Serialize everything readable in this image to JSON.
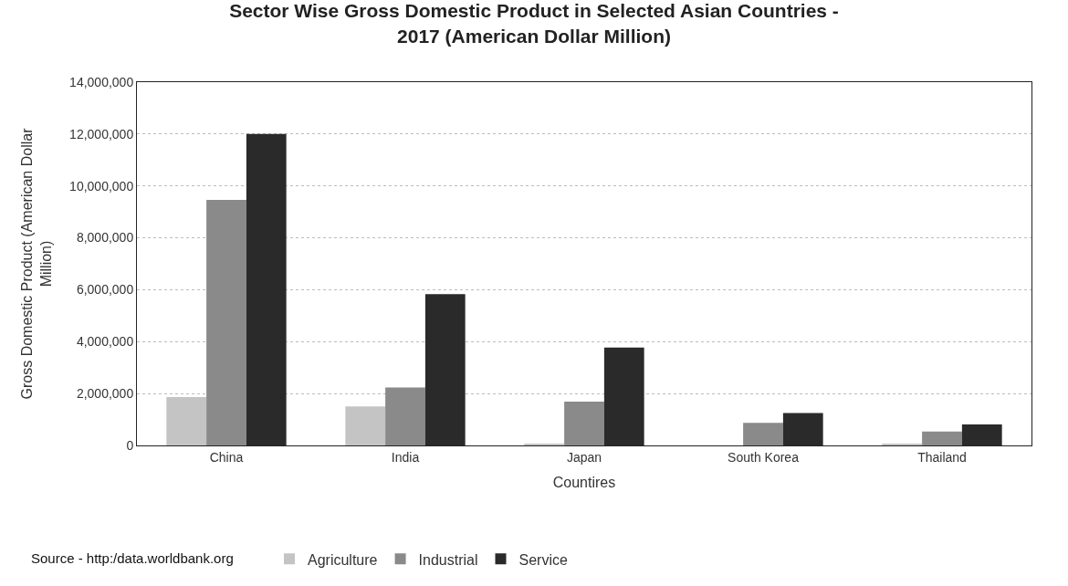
{
  "chart_data": {
    "type": "bar",
    "title": "Sector Wise Gross Domestic Product in Selected Asian Countries -\n2017 (American Dollar Million)",
    "xlabel": "Countires",
    "ylabel": "Gross Domestic Product (American Dollar\nMillion)",
    "categories": [
      "China",
      "India",
      "Japan",
      "South Korea",
      "Thailand"
    ],
    "series": [
      {
        "name": "Agriculture",
        "color": "#c4c4c4",
        "values": [
          1860000,
          1500000,
          60000,
          null,
          50000
        ]
      },
      {
        "name": "Industrial",
        "color": "#8a8a8a",
        "values": [
          9460000,
          2230000,
          1690000,
          870000,
          540000
        ]
      },
      {
        "name": "Service",
        "color": "#2a2a2a",
        "values": [
          12000000,
          5830000,
          3770000,
          1250000,
          810000
        ]
      }
    ],
    "ylim": [
      0,
      14000000
    ],
    "yticks": [
      {
        "value": 0,
        "label": "0"
      },
      {
        "value": 2000000,
        "label": "2,000,000"
      },
      {
        "value": 4000000,
        "label": "4,000,000"
      },
      {
        "value": 6000000,
        "label": "6,000,000"
      },
      {
        "value": 8000000,
        "label": "8,000,000"
      },
      {
        "value": 10000000,
        "label": "10,000,000"
      },
      {
        "value": 12000000,
        "label": "12,000,000"
      },
      {
        "value": 14000000,
        "label": "14,000,000"
      }
    ],
    "grid": "y",
    "legend": "bottom",
    "annotations": [
      "Source - http:/data.worldbank.org"
    ]
  }
}
